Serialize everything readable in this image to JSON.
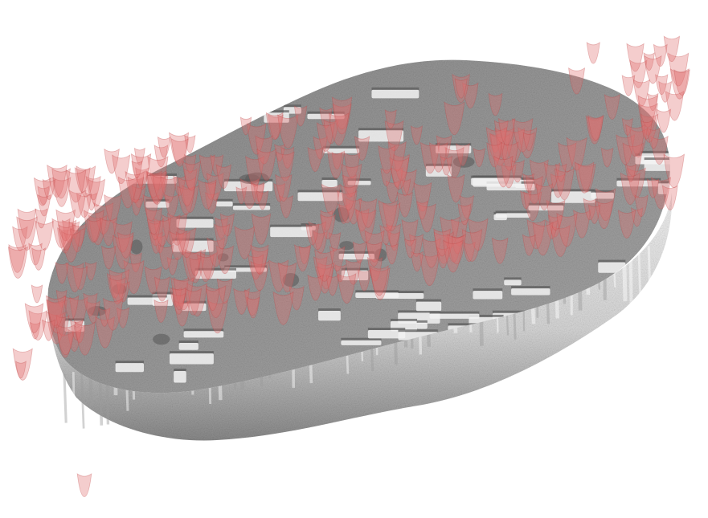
{
  "image": {
    "subject": "3d-rendered-surface-mesh",
    "background_color": "#ffffff",
    "surface_color": "#9a9a9a",
    "surface_highlight_color": "#f2f2f2",
    "surface_shadow_color": "#5a5a5a",
    "overlay_color": "#e07070",
    "overlay_stroke_color": "#c04848",
    "overlay_opacity": 0.35
  }
}
